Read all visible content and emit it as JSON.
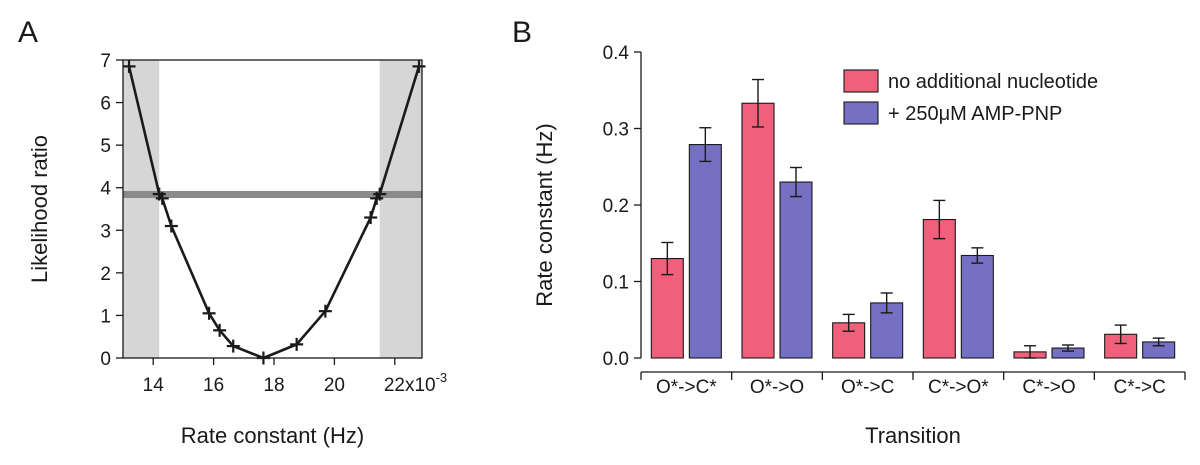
{
  "panel_labels": {
    "a": "A",
    "b": "B"
  },
  "colors": {
    "series_pink": "#f0607a",
    "series_purple": "#7570c4",
    "shade": "#d6d6d6",
    "threshold": "#8a8a8a",
    "ink": "#1a1a1a"
  },
  "chart_data": [
    {
      "type": "line",
      "panel": "A",
      "title": "",
      "xlabel": "Rate constant (Hz)",
      "ylabel": "Likelihood ratio",
      "xlim": [
        13.0,
        22.9
      ],
      "ylim": [
        0,
        7
      ],
      "x_scale_note": "x10",
      "x_scale_exp": "-3",
      "xticks": [
        {
          "value": 14,
          "label": "14"
        },
        {
          "value": 16,
          "label": "16"
        },
        {
          "value": 18,
          "label": "18"
        },
        {
          "value": 20,
          "label": "20"
        },
        {
          "value": 22,
          "label": "22"
        }
      ],
      "yticks": [
        {
          "value": 0,
          "label": "0"
        },
        {
          "value": 1,
          "label": "1"
        },
        {
          "value": 2,
          "label": "2"
        },
        {
          "value": 3,
          "label": "3"
        },
        {
          "value": 4,
          "label": "4"
        },
        {
          "value": 5,
          "label": "5"
        },
        {
          "value": 6,
          "label": "6"
        },
        {
          "value": 7,
          "label": "7"
        }
      ],
      "threshold": 3.84,
      "shaded_regions": [
        [
          13.0,
          14.2
        ],
        [
          21.5,
          22.9
        ]
      ],
      "points": [
        {
          "x": 13.2,
          "y": 6.85
        },
        {
          "x": 14.2,
          "y": 3.85
        },
        {
          "x": 14.3,
          "y": 3.75
        },
        {
          "x": 14.6,
          "y": 3.1
        },
        {
          "x": 15.85,
          "y": 1.05
        },
        {
          "x": 16.2,
          "y": 0.65
        },
        {
          "x": 16.65,
          "y": 0.28
        },
        {
          "x": 17.65,
          "y": 0.0
        },
        {
          "x": 18.75,
          "y": 0.32
        },
        {
          "x": 19.7,
          "y": 1.1
        },
        {
          "x": 21.2,
          "y": 3.3
        },
        {
          "x": 21.4,
          "y": 3.75
        },
        {
          "x": 21.5,
          "y": 3.85
        },
        {
          "x": 22.8,
          "y": 6.85
        }
      ]
    },
    {
      "type": "bar",
      "panel": "B",
      "title": "",
      "xlabel": "Transition",
      "ylabel": "Rate constant (Hz)",
      "ylim": [
        0,
        0.4
      ],
      "yticks": [
        {
          "value": 0,
          "label": "0.0"
        },
        {
          "value": 0.1,
          "label": "0.1"
        },
        {
          "value": 0.2,
          "label": "0.2"
        },
        {
          "value": 0.3,
          "label": "0.3"
        },
        {
          "value": 0.4,
          "label": "0.4"
        }
      ],
      "categories": [
        "O*->C*",
        "O*->O",
        "O*->C",
        "C*->O*",
        "C*->O",
        "C*->C"
      ],
      "legend_position": "top-right",
      "series": [
        {
          "name": "no additional nucleotide",
          "color": "#f0607a",
          "values": [
            0.13,
            0.333,
            0.046,
            0.181,
            0.008,
            0.031
          ],
          "errors": [
            0.021,
            0.031,
            0.011,
            0.025,
            0.008,
            0.012
          ]
        },
        {
          "name": "+ 250μM AMP-PNP",
          "color": "#7570c4",
          "values": [
            0.279,
            0.23,
            0.072,
            0.134,
            0.013,
            0.021
          ],
          "errors": [
            0.022,
            0.019,
            0.013,
            0.01,
            0.004,
            0.005
          ]
        }
      ]
    }
  ]
}
